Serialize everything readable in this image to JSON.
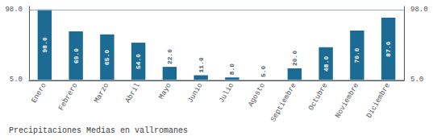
{
  "chart_data": {
    "type": "bar",
    "title": "Precipitaciones Medias en vallromanes",
    "categories": [
      "Enero",
      "Febrero",
      "Marzo",
      "Abril",
      "Mayo",
      "Junio",
      "Julio",
      "Agosto",
      "Septiembre",
      "Octubre",
      "Noviembre",
      "Diciembre"
    ],
    "values": [
      98.0,
      69.0,
      65.0,
      54.0,
      22.0,
      11.0,
      8.0,
      5.0,
      20.0,
      48.0,
      70.0,
      87.0
    ],
    "value_labels": [
      "98.0",
      "69.0",
      "65.0",
      "54.0",
      "22.0",
      "11.0",
      "8.0",
      "5.0",
      "20.0",
      "48.0",
      "70.0",
      "87.0"
    ],
    "data_labels": true,
    "color": "#1b6b94",
    "ylim": [
      4,
      102
    ],
    "yticks": [
      {
        "value": 5,
        "label": "5.0"
      },
      {
        "value": 98,
        "label": "98.0"
      }
    ],
    "grid": true
  }
}
